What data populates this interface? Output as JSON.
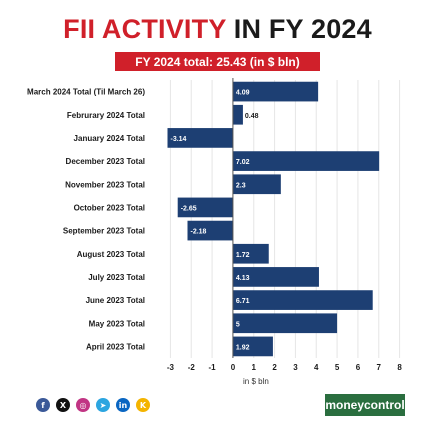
{
  "header": {
    "title_red": "FII ACTIVITY",
    "title_dark": "IN FY 2024",
    "badge": "FY 2024 total: 25.43 (in $ bln)"
  },
  "footer": {
    "icons": [
      "facebook-icon",
      "x-icon",
      "instagram-icon",
      "telegram-icon",
      "linkedin-icon",
      "koo-icon"
    ],
    "icon_glyphs": [
      "f",
      "X",
      "◎",
      "➤",
      "in",
      "K"
    ],
    "icon_colors": [
      "#3b5998",
      "#111111",
      "#c13584",
      "#2ca5e0",
      "#0a66c2",
      "#f4b400"
    ],
    "logo_text": "moneycontrol"
  },
  "chart_data": {
    "type": "bar",
    "orientation": "horizontal",
    "categories": [
      "March 2024 Total (Til March 26)",
      "Februrary 2024 Total",
      "January 2024 Total",
      "December 2023 Total",
      "November 2023 Total",
      "October 2023 Total",
      "September 2023 Total",
      "August 2023 Total",
      "July 2023 Total",
      "June 2023 Total",
      "May 2023 Total",
      "April 2023 Total"
    ],
    "values": [
      4.09,
      0.48,
      -3.14,
      7.02,
      2.3,
      -2.65,
      -2.18,
      1.72,
      4.13,
      6.71,
      5,
      1.92
    ],
    "value_labels": [
      "4.09",
      "0.48",
      "-3.14",
      "7.02",
      "2.3",
      "-2.65",
      "-2.18",
      "1.72",
      "4.13",
      "6.71",
      "5",
      "1.92"
    ],
    "xlabel": "in $ bln",
    "xlim": [
      -3.5,
      8.5
    ],
    "xticks": [
      -3,
      -2,
      -1,
      0,
      1,
      2,
      3,
      4,
      5,
      6,
      7,
      8
    ],
    "bar_color": "#1d3f73",
    "grid": "vertical",
    "legend": "none"
  }
}
